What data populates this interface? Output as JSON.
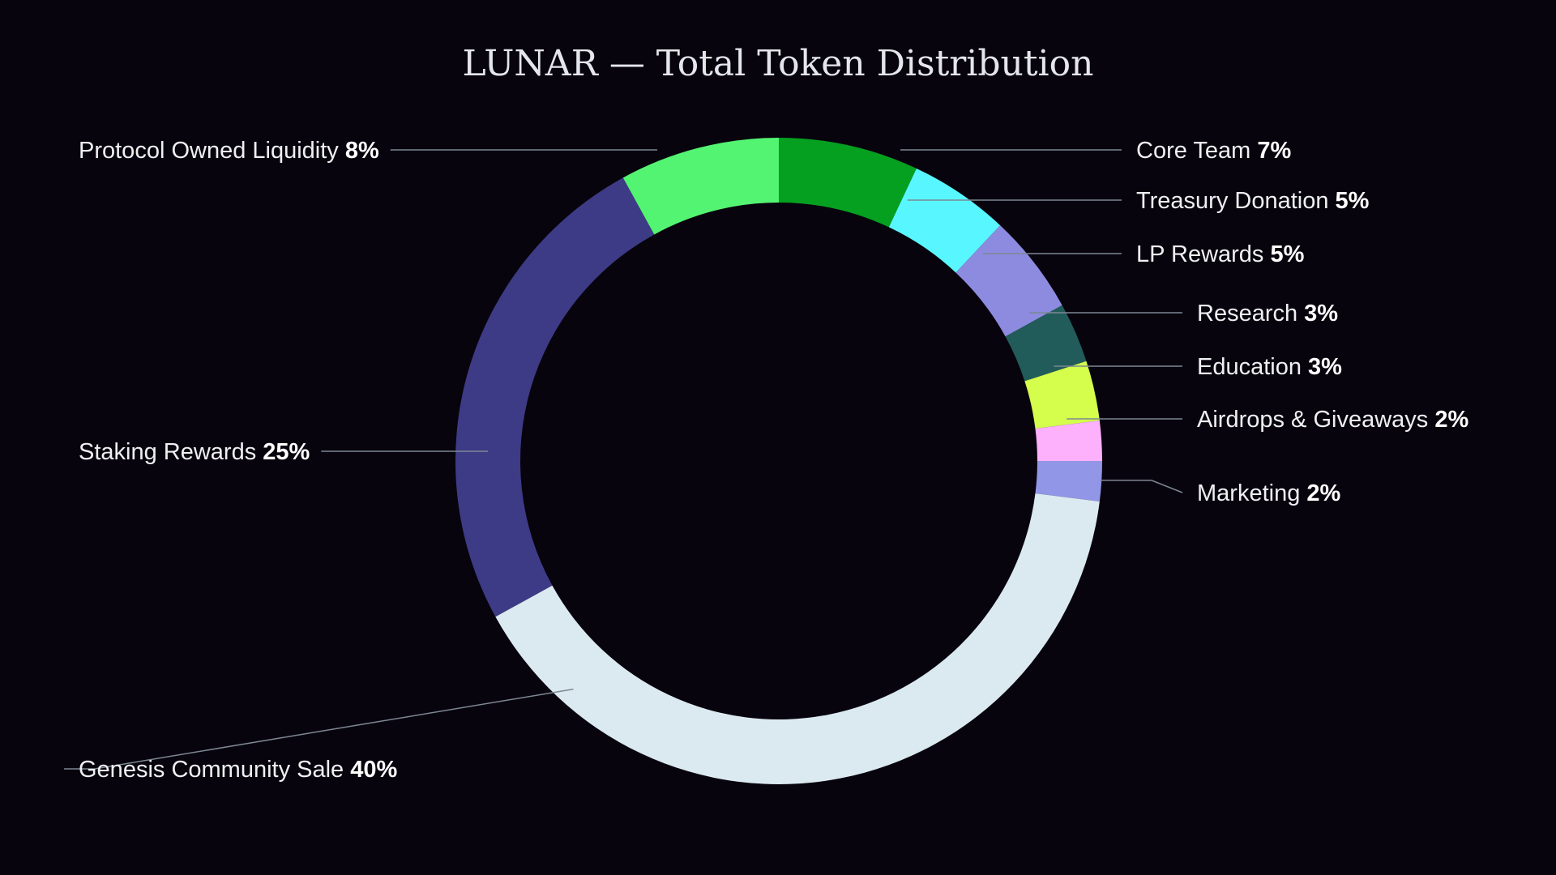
{
  "chart_data": {
    "type": "pie",
    "title": "LUNAR — Total Token Distribution",
    "center_label": "",
    "slices": [
      {
        "label": "Core Team",
        "value": 7,
        "value_text": "7%",
        "color": "#05a020"
      },
      {
        "label": "Treasury Donation",
        "value": 5,
        "value_text": "5%",
        "color": "#58f7ff"
      },
      {
        "label": "LP Rewards",
        "value": 5,
        "value_text": "5%",
        "color": "#8d8be0"
      },
      {
        "label": "Research",
        "value": 3,
        "value_text": "3%",
        "color": "#215c5a"
      },
      {
        "label": "Education",
        "value": 3,
        "value_text": "3%",
        "color": "#d4fd4c"
      },
      {
        "label": "Airdrops & Giveaways",
        "value": 2,
        "value_text": "2%",
        "color": "#fdb0fb"
      },
      {
        "label": "Marketing",
        "value": 2,
        "value_text": "2%",
        "color": "#9196e6"
      },
      {
        "label": "Genesis Community Sale",
        "value": 40,
        "value_text": "40%",
        "color": "#dbeaf0"
      },
      {
        "label": "Staking Rewards",
        "value": 25,
        "value_text": "25%",
        "color": "#3d3b86"
      },
      {
        "label": "Protocol Owned Liquidity",
        "value": 8,
        "value_text": "8%",
        "color": "#53f472"
      }
    ],
    "start_angle_deg": 0,
    "direction": "clockwise",
    "donut": true,
    "background": "#08040d"
  }
}
